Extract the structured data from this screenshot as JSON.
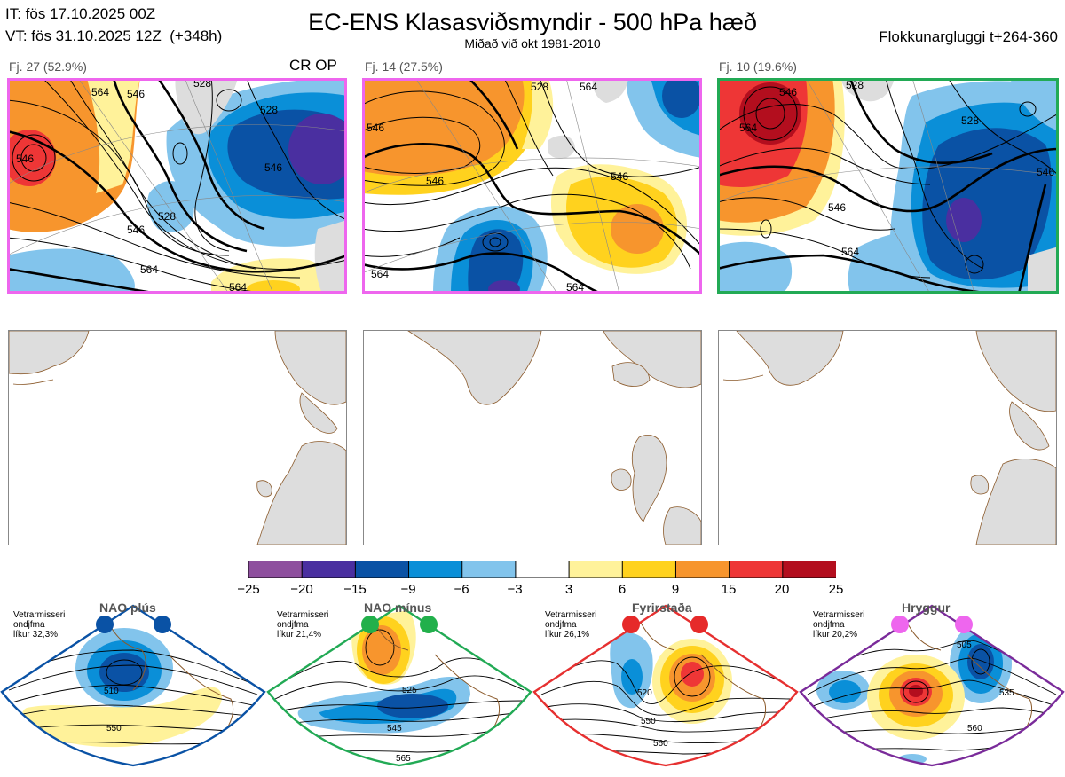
{
  "header": {
    "it_line": "IT: fös 17.10.2025 00Z",
    "vt_line": "VT: fös 31.10.2025 12Z  (+348h)",
    "title": "EC-ENS Klasasviðsmyndir - 500 hPa hæð",
    "subtitle": "Miðað við okt 1981-2010",
    "window": "Flokkunargluggi t+264-360"
  },
  "panels": [
    {
      "label": "Fj. 27 (52.9%)",
      "tag": "CR OP",
      "border_color": "#ee66ee"
    },
    {
      "label": "Fj. 14 (27.5%)",
      "tag": "",
      "border_color": "#ee66ee"
    },
    {
      "label": "Fj. 10 (19.6%)",
      "tag": "",
      "border_color": "#22aa55"
    }
  ],
  "contour_labels": {
    "p1": [
      "546",
      "564",
      "546",
      "528",
      "546",
      "564",
      "528",
      "564",
      "528",
      "546"
    ],
    "p2": [
      "546",
      "528",
      "546",
      "564",
      "564",
      "546",
      "564"
    ],
    "p3": [
      "528",
      "546",
      "564",
      "528",
      "564",
      "546",
      "546"
    ]
  },
  "colorbar": {
    "ticks": [
      "−25",
      "−20",
      "−15",
      "−9",
      "−6",
      "−3",
      "3",
      "6",
      "9",
      "15",
      "20",
      "25"
    ],
    "colors": [
      "#8e4f9e",
      "#4a2fa0",
      "#0a52a5",
      "#0a8fd8",
      "#82c4ec",
      "#ffffff",
      "#fff29a",
      "#ffd21e",
      "#f7952d",
      "#ee3636",
      "#b30e1e"
    ]
  },
  "regimes": [
    {
      "name": "NAO plús",
      "desc": "Vetrarmisseri\nondjfma\nlíkur 32,3%",
      "color": "#0a52a5",
      "dot": "#0a52a5",
      "labels": [
        "510",
        "550"
      ]
    },
    {
      "name": "NAO mínus",
      "desc": "Vetrarmisseri\nondjfma\nlíkur 21,4%",
      "color": "#22aa55",
      "dot": "#22b04b",
      "labels": [
        "525",
        "545",
        "565"
      ]
    },
    {
      "name": "Fyrirstaða",
      "desc": "Vetrarmisseri\nondjfma\nlíkur 26,1%",
      "color": "#e63030",
      "dot": "#e62a2a",
      "labels": [
        "520",
        "550",
        "560"
      ]
    },
    {
      "name": "Hryggur",
      "desc": "Vetrarmisseri\nondjfma\nlíkur 20,2%",
      "color": "#7a2b9a",
      "dot": "#ee66ee",
      "labels": [
        "505",
        "535",
        "560"
      ]
    }
  ]
}
